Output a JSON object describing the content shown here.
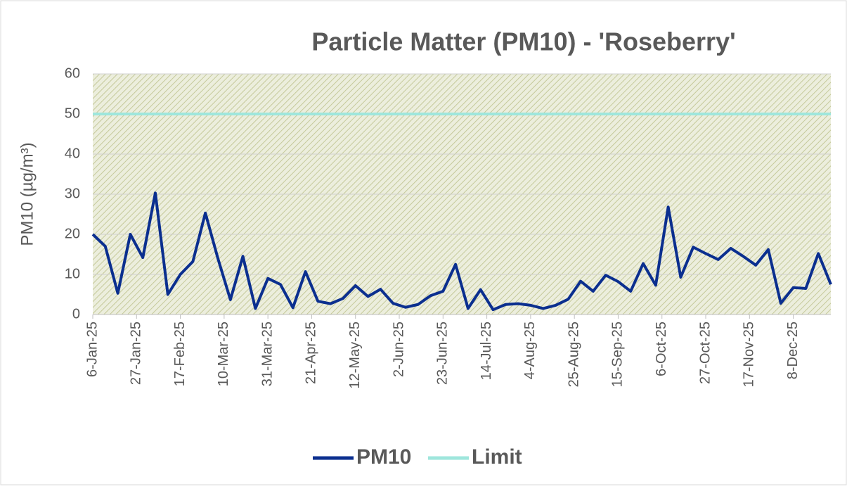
{
  "chart_data": {
    "type": "line",
    "title": "Particle Matter (PM10) - 'Roseberry'",
    "y_label": "PM10 (µg/m³)",
    "x": [
      "6-Jan-25",
      "12-Jan-25",
      "18-Jan-25",
      "24-Jan-25",
      "30-Jan-25",
      "5-Feb-25",
      "11-Feb-25",
      "17-Feb-25",
      "23-Feb-25",
      "1-Mar-25",
      "7-Mar-25",
      "13-Mar-25",
      "19-Mar-25",
      "25-Mar-25",
      "31-Mar-25",
      "6-Apr-25",
      "12-Apr-25",
      "18-Apr-25",
      "24-Apr-25",
      "30-Apr-25",
      "6-May-25",
      "12-May-25",
      "18-May-25",
      "24-May-25",
      "30-May-25",
      "5-Jun-25",
      "11-Jun-25",
      "17-Jun-25",
      "23-Jun-25",
      "29-Jun-25",
      "5-Jul-25",
      "11-Jul-25",
      "17-Jul-25",
      "23-Jul-25",
      "29-Jul-25",
      "4-Aug-25",
      "10-Aug-25",
      "16-Aug-25",
      "22-Aug-25",
      "28-Aug-25",
      "3-Sep-25",
      "9-Sep-25",
      "15-Sep-25",
      "21-Sep-25",
      "27-Sep-25",
      "3-Oct-25",
      "9-Oct-25",
      "15-Oct-25",
      "21-Oct-25",
      "27-Oct-25",
      "2-Nov-25",
      "8-Nov-25",
      "14-Nov-25",
      "20-Nov-25",
      "26-Nov-25",
      "2-Dec-25",
      "8-Dec-25",
      "14-Dec-25",
      "20-Dec-25",
      "26-Dec-25"
    ],
    "series": [
      {
        "name": "PM10",
        "color": "#0b2f8f",
        "values": [
          20,
          17,
          5.3,
          20,
          14.2,
          30.3,
          5,
          10,
          13.2,
          25.3,
          14,
          3.7,
          14.5,
          1.5,
          9,
          7.5,
          1.7,
          10.7,
          3.3,
          2.7,
          4,
          7.2,
          4.5,
          6.3,
          2.8,
          1.8,
          2.5,
          4.7,
          5.8,
          12.5,
          1.5,
          6.2,
          1.2,
          2.5,
          2.7,
          2.3,
          1.5,
          2.3,
          3.8,
          8.3,
          5.8,
          9.8,
          8.2,
          5.8,
          12.7,
          7.3,
          26.8,
          9.3,
          16.8,
          15.2,
          13.7,
          16.5,
          14.5,
          12.3,
          16.2,
          2.8,
          6.7,
          6.5,
          15.2,
          7.5
        ]
      },
      {
        "name": "Limit",
        "color": "#9ee6dc",
        "values": [
          50,
          50,
          50,
          50,
          50,
          50,
          50,
          50,
          50,
          50,
          50,
          50,
          50,
          50,
          50,
          50,
          50,
          50,
          50,
          50,
          50,
          50,
          50,
          50,
          50,
          50,
          50,
          50,
          50,
          50,
          50,
          50,
          50,
          50,
          50,
          50,
          50,
          50,
          50,
          50,
          50,
          50,
          50,
          50,
          50,
          50,
          50,
          50,
          50,
          50,
          50,
          50,
          50,
          50,
          50,
          50,
          50,
          50,
          50,
          50
        ]
      }
    ],
    "xlim": [
      "6-Jan-25",
      "26-Dec-25"
    ],
    "xticks": [
      "6-Jan-25",
      "27-Jan-25",
      "17-Feb-25",
      "10-Mar-25",
      "31-Mar-25",
      "21-Apr-25",
      "12-May-25",
      "2-Jun-25",
      "23-Jun-25",
      "14-Jul-25",
      "4-Aug-25",
      "25-Aug-25",
      "15-Sep-25",
      "6-Oct-25",
      "27-Oct-25",
      "17-Nov-25",
      "8-Dec-25"
    ],
    "ylim": [
      0,
      60
    ],
    "yticks": [
      0,
      10,
      20,
      30,
      40,
      50,
      60
    ],
    "grid": true,
    "legend": "bottom"
  }
}
